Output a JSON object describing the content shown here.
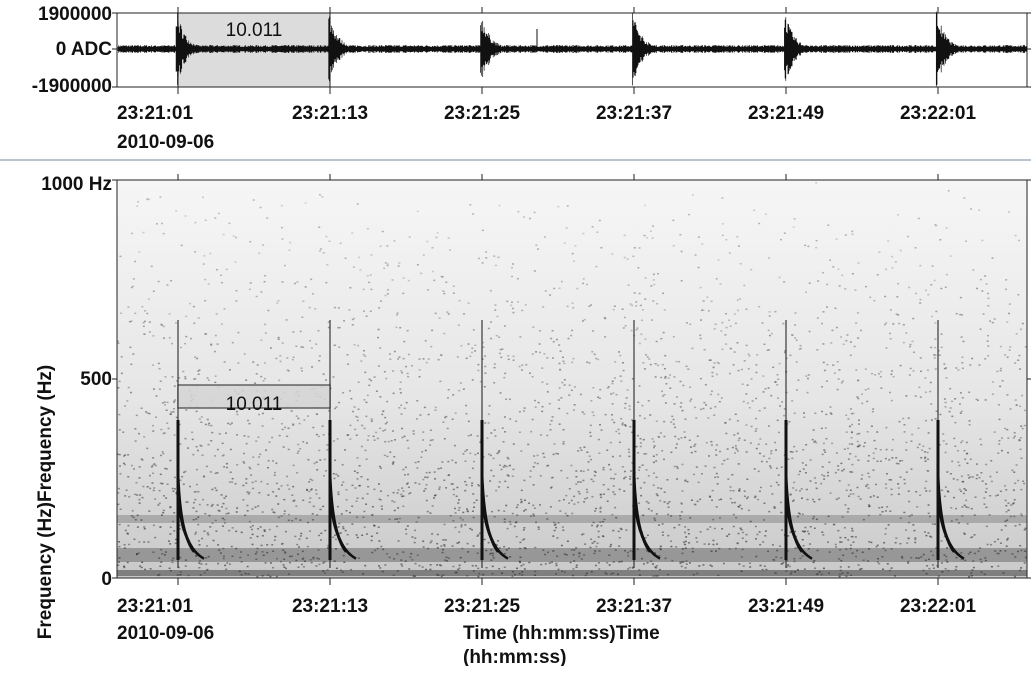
{
  "waveform": {
    "y_labels": [
      "1900000",
      "0 ADC",
      "-1900000"
    ],
    "selection_label": "10.011",
    "x_labels": [
      "23:21:01",
      "23:21:13",
      "23:21:25",
      "23:21:37",
      "23:21:49",
      "23:22:01"
    ],
    "date": "2010-09-06"
  },
  "spectrogram": {
    "y_labels": [
      "1000 Hz",
      "500",
      "0"
    ],
    "selection_label": "10.011",
    "x_labels": [
      "23:21:01",
      "23:21:13",
      "23:21:25",
      "23:21:37",
      "23:21:49",
      "23:22:01"
    ],
    "date": "2010-09-06",
    "x_title": "Time (hh:mm:ss)Time (hh:mm:ss)",
    "y_title": "Frequency (Hz)Frequency (Hz)"
  }
}
